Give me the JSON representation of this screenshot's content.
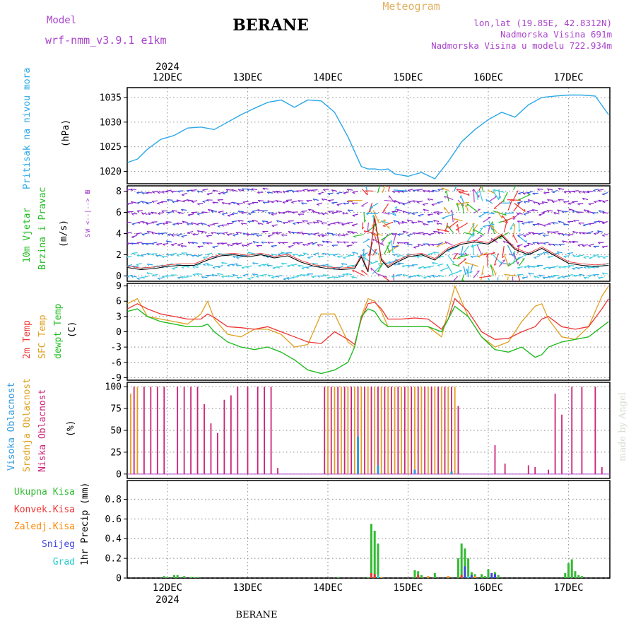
{
  "header": {
    "model_label": "Model",
    "model_name": "wrf-nmm_v3.9.1 e1km",
    "station": "BERANE",
    "product": "Meteogram",
    "coords": "lon,lat (19.85E, 42.8312N)",
    "elevation": "Nadmorska Visina 691m",
    "model_elevation": "Nadmorska Visina u modelu 722.934m",
    "watermark": "made by Angel",
    "footer_station": "BERANE"
  },
  "colors": {
    "pressure": "#2aa7e8",
    "temp2m": "#ee3333",
    "sfc_temp": "#e0a020",
    "dewpt": "#22bb22",
    "high_cloud": "#3399dd",
    "mid_cloud": "#e0a020",
    "low_cloud": "#cc2277",
    "total_precip": "#33bb33",
    "conv_precip": "#ee3333",
    "frz_precip": "#ff8800",
    "snow": "#4444dd",
    "hail": "#22cccc",
    "wind_label": "#22bb22",
    "wind_dir": "#aa44cc"
  },
  "axis": {
    "year": "2024",
    "days": [
      "12DEC",
      "13DEC",
      "14DEC",
      "15DEC",
      "16DEC",
      "17DEC"
    ]
  },
  "chart_data": [
    {
      "type": "line",
      "panel": "pressure",
      "ylabels": [
        "Pritisak na nivou mora",
        "(hPa)"
      ],
      "ylim": [
        1017.5,
        1037
      ],
      "yticks": [
        1020,
        1025,
        1030,
        1035
      ],
      "x_unit": "hours since 11 Dec 12:00",
      "x": [
        0,
        3,
        6,
        10,
        14,
        18,
        22,
        26,
        30,
        34,
        38,
        42,
        46,
        50,
        54,
        58,
        62,
        66,
        70,
        72,
        74,
        76,
        78,
        80,
        84,
        88,
        92,
        96,
        100,
        104,
        108,
        112,
        116,
        120,
        124,
        128,
        132,
        136,
        140,
        144
      ],
      "series": [
        {
          "name": "Pritisak na nivou mora",
          "values": [
            1021.8,
            1022.5,
            1024.5,
            1026.5,
            1027.3,
            1028.8,
            1029.0,
            1028.5,
            1030.0,
            1031.5,
            1032.8,
            1034.0,
            1034.5,
            1033.0,
            1034.5,
            1034.3,
            1032.0,
            1027.0,
            1021.0,
            1020.5,
            1020.5,
            1020.3,
            1020.5,
            1019.5,
            1019.0,
            1019.8,
            1018.5,
            1022.0,
            1026.0,
            1028.5,
            1030.5,
            1032.0,
            1031.0,
            1033.5,
            1035.0,
            1035.3,
            1035.5,
            1035.5,
            1035.3,
            1031.5
          ]
        }
      ]
    },
    {
      "type": "line",
      "panel": "wind",
      "ylabels": [
        "10m Vjetar",
        "Brzina i Pravac",
        "(m/s)"
      ],
      "ylim": [
        -0.5,
        8.5
      ],
      "yticks": [
        0,
        2,
        4,
        6,
        8
      ],
      "direction_legend": [
        "N",
        "W <--|--> E",
        "S"
      ],
      "x_unit": "hours since 11 Dec 12:00",
      "x": [
        0,
        4,
        8,
        12,
        16,
        20,
        24,
        28,
        32,
        36,
        40,
        44,
        48,
        52,
        56,
        60,
        64,
        68,
        70,
        72,
        74,
        76,
        78,
        80,
        84,
        88,
        92,
        96,
        100,
        104,
        108,
        112,
        116,
        120,
        124,
        128,
        132,
        136,
        140,
        144
      ],
      "series": [
        {
          "name": "Brzina",
          "values": [
            0.8,
            0.6,
            0.7,
            0.9,
            1.0,
            1.0,
            1.5,
            1.9,
            2.0,
            1.8,
            2.0,
            1.7,
            1.9,
            1.3,
            0.9,
            0.7,
            0.6,
            0.7,
            1.8,
            0.4,
            5.5,
            1.5,
            0.8,
            1.2,
            1.8,
            2.0,
            1.5,
            2.5,
            3.0,
            3.2,
            3.0,
            3.8,
            2.5,
            2.0,
            2.6,
            1.9,
            1.2,
            1.0,
            0.9,
            1.0
          ]
        }
      ]
    },
    {
      "type": "line",
      "panel": "temperature",
      "ylabels": [
        "2m Temp",
        "SFC Temp",
        "dewpt Temp",
        "(C)"
      ],
      "ylim": [
        -9.5,
        9.5
      ],
      "yticks": [
        -9,
        -6,
        -3,
        0,
        3,
        6,
        9
      ],
      "x_unit": "hours since 11 Dec 12:00",
      "x": [
        0,
        3,
        6,
        10,
        14,
        18,
        22,
        24,
        26,
        30,
        34,
        38,
        42,
        46,
        50,
        54,
        58,
        62,
        66,
        68,
        70,
        72,
        74,
        76,
        78,
        82,
        86,
        90,
        94,
        96,
        98,
        102,
        106,
        110,
        114,
        118,
        122,
        124,
        126,
        130,
        134,
        138,
        142,
        144
      ],
      "series": [
        {
          "name": "2m Temp",
          "values": [
            4.5,
            5.5,
            4.5,
            3.5,
            3.0,
            2.5,
            2.5,
            3.5,
            2.8,
            1.0,
            0.8,
            0.5,
            1.0,
            0.0,
            -1.0,
            -2.0,
            -2.3,
            0.0,
            -1.5,
            -2.5,
            2.5,
            5.5,
            5.8,
            4.5,
            2.5,
            2.5,
            2.7,
            2.5,
            0.5,
            2.5,
            6.5,
            4.0,
            0.0,
            -1.5,
            -1.3,
            0.0,
            1.0,
            2.5,
            3.0,
            1.0,
            0.5,
            1.0,
            4.5,
            6.5
          ]
        },
        {
          "name": "SFC Temp",
          "values": [
            5.5,
            6.5,
            3.0,
            2.5,
            2.0,
            1.5,
            3.5,
            6.0,
            2.5,
            -0.5,
            -1.0,
            0.5,
            0.5,
            -0.5,
            -3.0,
            -2.5,
            3.5,
            3.5,
            -2.0,
            -3.0,
            3.0,
            6.5,
            6.0,
            4.0,
            1.0,
            1.0,
            1.0,
            1.0,
            -1.0,
            4.0,
            9.0,
            3.0,
            -1.0,
            -3.0,
            -2.0,
            2.0,
            5.0,
            5.5,
            2.5,
            -1.0,
            -1.5,
            1.0,
            7.0,
            9.0
          ]
        },
        {
          "name": "dewpt Temp",
          "values": [
            4.0,
            4.5,
            3.0,
            2.0,
            1.5,
            1.0,
            1.0,
            1.5,
            0.0,
            -2.0,
            -3.0,
            -3.5,
            -3.0,
            -4.0,
            -5.5,
            -7.5,
            -8.2,
            -7.5,
            -6.0,
            -3.0,
            3.0,
            4.5,
            4.0,
            2.0,
            1.0,
            1.0,
            1.0,
            1.0,
            0.0,
            2.5,
            5.0,
            3.0,
            -1.0,
            -3.5,
            -4.0,
            -3.0,
            -5.0,
            -4.5,
            -3.0,
            -2.0,
            -1.5,
            -1.0,
            1.0,
            2.0
          ]
        }
      ]
    },
    {
      "type": "bar",
      "panel": "cloud",
      "ylabels": [
        "Visoka Oblacnost",
        "Srednja Oblacnost",
        "Niska Oblacnost",
        "(%)"
      ],
      "ylim": [
        -5,
        105
      ],
      "yticks": [
        0,
        25,
        50,
        75,
        100
      ],
      "x_unit": "hours since 11 Dec 12:00",
      "series": [
        {
          "name": "Niska Oblacnost",
          "x": [
            2,
            5,
            7,
            9,
            11,
            15,
            17,
            19,
            21,
            23,
            25,
            27,
            29,
            31,
            33,
            36,
            39,
            41,
            43,
            45,
            59,
            61,
            63,
            65,
            67,
            69,
            71,
            73,
            75,
            77,
            79,
            81,
            83,
            85,
            87,
            89,
            91,
            93,
            95,
            97,
            99,
            110,
            113,
            120,
            122,
            126,
            128,
            130,
            133,
            136,
            140,
            142
          ],
          "values": [
            100,
            100,
            100,
            100,
            100,
            100,
            100,
            100,
            100,
            80,
            58,
            47,
            85,
            90,
            100,
            100,
            100,
            100,
            100,
            7,
            100,
            100,
            100,
            100,
            100,
            100,
            100,
            100,
            100,
            100,
            100,
            100,
            100,
            100,
            100,
            100,
            100,
            100,
            100,
            100,
            78,
            33,
            12,
            10,
            8,
            5,
            92,
            68,
            100,
            100,
            100,
            8
          ]
        },
        {
          "name": "Srednja Oblacnost",
          "x": [
            1,
            3,
            60,
            62,
            64,
            66,
            68,
            70,
            72,
            74,
            76,
            78,
            80,
            82,
            84,
            86,
            88,
            90,
            92,
            94,
            96,
            98
          ],
          "values": [
            92,
            100,
            100,
            100,
            100,
            100,
            100,
            100,
            100,
            100,
            100,
            100,
            100,
            100,
            100,
            100,
            100,
            100,
            100,
            100,
            100,
            100
          ]
        },
        {
          "name": "Visoka Oblacnost",
          "x": [
            69,
            75,
            86,
            97
          ],
          "values": [
            43,
            10,
            5,
            3
          ]
        }
      ]
    },
    {
      "type": "bar",
      "panel": "precip",
      "ylabels": [
        "1hr Precip (mm)"
      ],
      "legend": [
        "Ukupna Kisa",
        "Konvek.Kisa",
        "Zaledj.Kisa",
        "Snijeg",
        "Grad"
      ],
      "ylim": [
        0,
        0.99
      ],
      "yticks": [
        0,
        0.2,
        0.4,
        0.6,
        0.8
      ],
      "x_unit": "hours since 11 Dec 12:00",
      "series": [
        {
          "name": "Ukupna Kisa",
          "x": [
            11,
            12,
            14,
            15,
            17,
            19,
            20,
            21,
            63,
            72,
            73,
            74,
            75,
            86,
            87,
            88,
            92,
            99,
            100,
            101,
            102,
            103,
            104,
            106,
            107,
            108,
            110,
            111,
            131,
            132,
            133,
            134,
            135,
            136
          ],
          "values": [
            0.02,
            0.01,
            0.03,
            0.03,
            0.02,
            0.01,
            0.01,
            0.01,
            0.01,
            0.01,
            0.55,
            0.48,
            0.35,
            0.08,
            0.07,
            0.03,
            0.05,
            0.2,
            0.35,
            0.3,
            0.2,
            0.06,
            0.04,
            0.04,
            0.02,
            0.09,
            0.06,
            0.03,
            0.05,
            0.15,
            0.19,
            0.07,
            0.03,
            0.02
          ]
        },
        {
          "name": "Konvek.Kisa",
          "x": [
            73,
            74,
            87,
            100
          ],
          "values": [
            0.05,
            0.04,
            0.03,
            0.03
          ]
        },
        {
          "name": "Zaledj.Kisa",
          "x": [
            76,
            90,
            96,
            104
          ],
          "values": [
            0.01,
            0.02,
            0.02,
            0.02
          ]
        },
        {
          "name": "Snijeg",
          "x": [
            101,
            103,
            109,
            110
          ],
          "values": [
            0.12,
            0.03,
            0.05,
            0.04
          ]
        },
        {
          "name": "Grad",
          "x": [
            75,
            102
          ],
          "values": [
            0.03,
            0.02
          ]
        }
      ]
    }
  ]
}
